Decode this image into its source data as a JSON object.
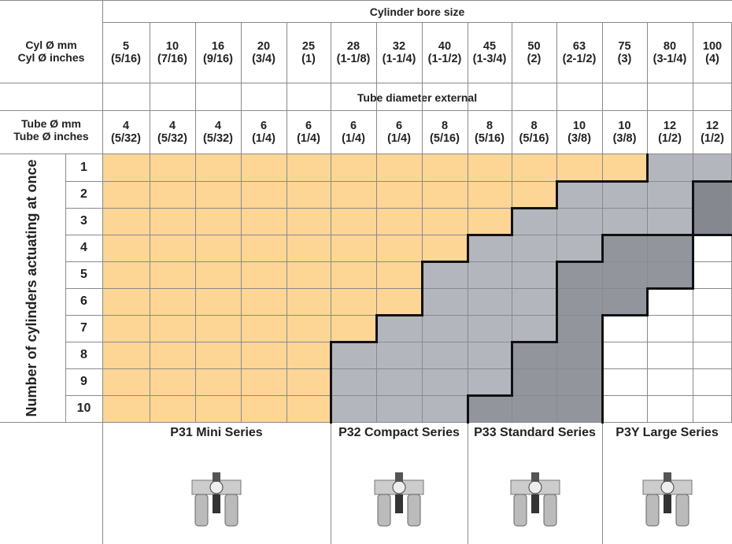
{
  "header": {
    "cyl_mm_label": "Cyl Ø mm",
    "cyl_in_label": "Cyl Ø inches",
    "bore_title": "Cylinder bore size",
    "bores": [
      {
        "mm": "5",
        "in": "(5/16)"
      },
      {
        "mm": "10",
        "in": "(7/16)"
      },
      {
        "mm": "16",
        "in": "(9/16)"
      },
      {
        "mm": "20",
        "in": "(3/4)"
      },
      {
        "mm": "25",
        "in": "(1)"
      },
      {
        "mm": "28",
        "in": "(1-1/8)"
      },
      {
        "mm": "32",
        "in": "(1-1/4)"
      },
      {
        "mm": "40",
        "in": "(1-1/2)"
      },
      {
        "mm": "45",
        "in": "(1-3/4)"
      },
      {
        "mm": "50",
        "in": "(2)"
      },
      {
        "mm": "63",
        "in": "(2-1/2)"
      },
      {
        "mm": "75",
        "in": "(3)"
      },
      {
        "mm": "80",
        "in": "(3-1/4)"
      },
      {
        "mm": "100",
        "in": "(4)"
      }
    ],
    "tube_mm_label": "Tube Ø mm",
    "tube_in_label": "Tube Ø inches",
    "tube_title": "Tube diameter external",
    "tubes": [
      {
        "mm": "4",
        "in": "(5/32)"
      },
      {
        "mm": "4",
        "in": "(5/32)"
      },
      {
        "mm": "4",
        "in": "(5/32)"
      },
      {
        "mm": "6",
        "in": "(1/4)"
      },
      {
        "mm": "6",
        "in": "(1/4)"
      },
      {
        "mm": "6",
        "in": "(1/4)"
      },
      {
        "mm": "6",
        "in": "(1/4)"
      },
      {
        "mm": "8",
        "in": "(5/16)"
      },
      {
        "mm": "8",
        "in": "(5/16)"
      },
      {
        "mm": "8",
        "in": "(5/16)"
      },
      {
        "mm": "10",
        "in": "(3/8)"
      },
      {
        "mm": "10",
        "in": "(3/8)"
      },
      {
        "mm": "12",
        "in": "(1/2)"
      },
      {
        "mm": "12",
        "in": "(1/2)"
      }
    ]
  },
  "rows_label": "Number of cylinders actuating at once",
  "rows": [
    "1",
    "2",
    "3",
    "4",
    "5",
    "6",
    "7",
    "8",
    "9",
    "10"
  ],
  "series": [
    "P31 Mini Series",
    "P32 Compact Series",
    "P33 Standard Series",
    "P3Y Large Series"
  ]
}
